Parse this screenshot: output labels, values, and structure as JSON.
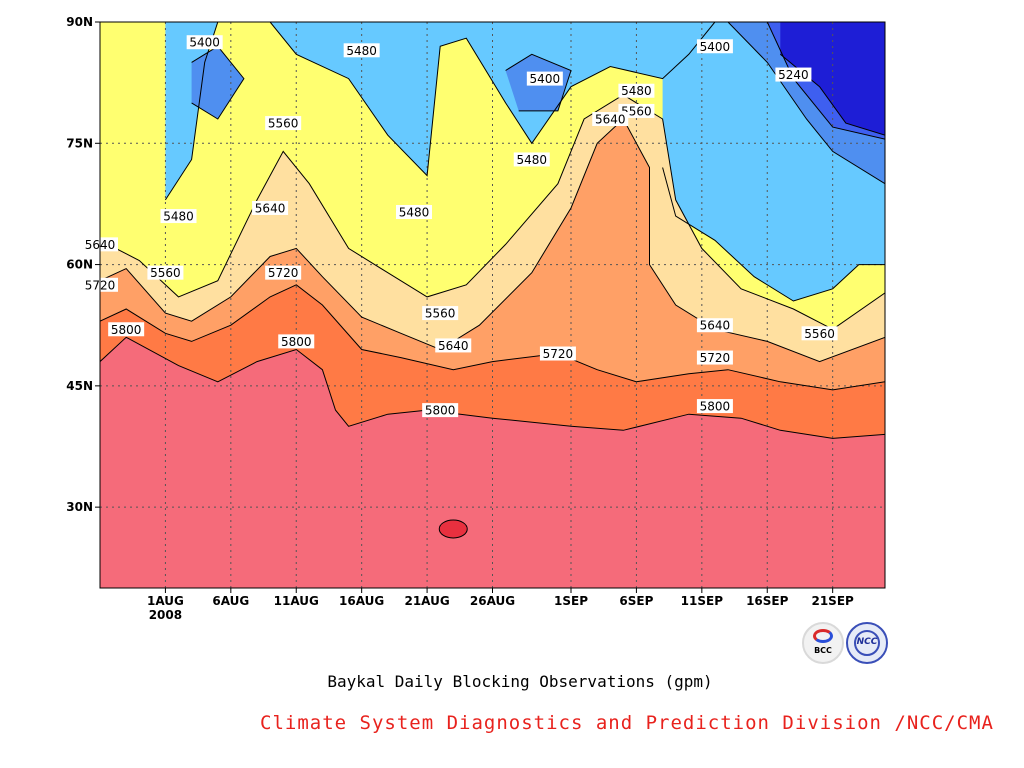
{
  "chart_data": {
    "type": "heatmap",
    "subtype": "filled latitude-time contour plot",
    "x_axis": {
      "start": "2008-07-27",
      "end": "2008-09-25",
      "tick_labels": [
        "1AUG",
        "6AUG",
        "11AUG",
        "16AUG",
        "21AUG",
        "26AUG",
        "1SEP",
        "6SEP",
        "11SEP",
        "16SEP",
        "21SEP"
      ],
      "tick_dates": [
        "2008-08-01",
        "2008-08-06",
        "2008-08-11",
        "2008-08-16",
        "2008-08-21",
        "2008-08-26",
        "2008-09-01",
        "2008-09-06",
        "2008-09-11",
        "2008-09-16",
        "2008-09-21"
      ],
      "year_label": "2008"
    },
    "y_axis": {
      "range": [
        20,
        90
      ],
      "tick_labels": [
        "30N",
        "45N",
        "60N",
        "75N",
        "90N"
      ],
      "tick_values": [
        30,
        45,
        60,
        75,
        90
      ]
    },
    "grid": true,
    "contour_levels": [
      5240,
      5320,
      5400,
      5480,
      5560,
      5640,
      5720,
      5800
    ],
    "contour_lines": [
      {
        "level": 5800,
        "points": [
          [
            "2008-07-27",
            48.0
          ],
          [
            "2008-07-29",
            51.0
          ],
          [
            "2008-08-02",
            47.5
          ],
          [
            "2008-08-05",
            45.5
          ],
          [
            "2008-08-08",
            48.0
          ],
          [
            "2008-08-11",
            49.5
          ],
          [
            "2008-08-13",
            47.0
          ],
          [
            "2008-08-14",
            42.0
          ],
          [
            "2008-08-15",
            40.0
          ],
          [
            "2008-08-18",
            41.5
          ],
          [
            "2008-08-21",
            42.0
          ],
          [
            "2008-08-26",
            41.0
          ],
          [
            "2008-09-01",
            40.0
          ],
          [
            "2008-09-05",
            39.5
          ],
          [
            "2008-09-10",
            41.5
          ],
          [
            "2008-09-14",
            41.0
          ],
          [
            "2008-09-17",
            39.5
          ],
          [
            "2008-09-21",
            38.5
          ],
          [
            "2008-09-25",
            39.0
          ]
        ]
      },
      {
        "level": 5720,
        "points": [
          [
            "2008-07-27",
            53.0
          ],
          [
            "2008-07-29",
            54.5
          ],
          [
            "2008-08-01",
            51.5
          ],
          [
            "2008-08-03",
            50.5
          ],
          [
            "2008-08-06",
            52.5
          ],
          [
            "2008-08-09",
            56.0
          ],
          [
            "2008-08-11",
            57.5
          ],
          [
            "2008-08-13",
            55.0
          ],
          [
            "2008-08-16",
            49.5
          ],
          [
            "2008-08-19",
            48.5
          ],
          [
            "2008-08-23",
            47.0
          ],
          [
            "2008-08-26",
            48.0
          ],
          [
            "2008-08-31",
            49.0
          ],
          [
            "2008-09-03",
            47.0
          ],
          [
            "2008-09-06",
            45.5
          ],
          [
            "2008-09-10",
            46.5
          ],
          [
            "2008-09-13",
            47.0
          ],
          [
            "2008-09-17",
            45.5
          ],
          [
            "2008-09-21",
            44.5
          ],
          [
            "2008-09-25",
            45.5
          ]
        ]
      },
      {
        "level": 5640,
        "points": [
          [
            "2008-07-27",
            58.0
          ],
          [
            "2008-07-29",
            59.5
          ],
          [
            "2008-08-01",
            54.0
          ],
          [
            "2008-08-03",
            53.0
          ],
          [
            "2008-08-06",
            56.0
          ],
          [
            "2008-08-09",
            61.0
          ],
          [
            "2008-08-11",
            62.0
          ],
          [
            "2008-08-13",
            58.5
          ],
          [
            "2008-08-16",
            53.5
          ],
          [
            "2008-08-19",
            51.5
          ],
          [
            "2008-08-22",
            49.5
          ],
          [
            "2008-08-25",
            52.5
          ],
          [
            "2008-08-29",
            59.0
          ],
          [
            "2008-09-01",
            67.0
          ],
          [
            "2008-09-03",
            75.0
          ],
          [
            "2008-09-05",
            78.0
          ],
          [
            "2008-09-07",
            72.0
          ],
          [
            "2008-09-07",
            60.0
          ],
          [
            "2008-09-09",
            55.0
          ],
          [
            "2008-09-12",
            52.0
          ],
          [
            "2008-09-16",
            50.5
          ],
          [
            "2008-09-20",
            48.0
          ],
          [
            "2008-09-25",
            51.0
          ]
        ]
      },
      {
        "level": 5560,
        "points": [
          [
            "2008-07-27",
            63.0
          ],
          [
            "2008-07-30",
            60.5
          ],
          [
            "2008-08-02",
            56.0
          ],
          [
            "2008-08-05",
            58.0
          ],
          [
            "2008-08-08",
            68.0
          ],
          [
            "2008-08-10",
            74.0
          ],
          [
            "2008-08-12",
            70.0
          ],
          [
            "2008-08-15",
            62.0
          ],
          [
            "2008-08-18",
            59.0
          ],
          [
            "2008-08-21",
            56.0
          ],
          [
            "2008-08-24",
            57.5
          ],
          [
            "2008-08-27",
            62.5
          ],
          [
            "2008-08-31",
            70.0
          ],
          [
            "2008-09-02",
            78.0
          ],
          [
            "2008-09-05",
            81.0
          ],
          [
            "2008-09-08",
            78.0
          ],
          [
            "2008-09-09",
            68.0
          ],
          [
            "2008-09-11",
            62.0
          ],
          [
            "2008-09-14",
            57.0
          ],
          [
            "2008-09-18",
            54.5
          ],
          [
            "2008-09-21",
            52.0
          ],
          [
            "2008-09-25",
            56.5
          ]
        ]
      },
      {
        "level": 5480,
        "points": [
          [
            "2008-08-01",
            68.0
          ],
          [
            "2008-08-03",
            73.0
          ],
          [
            "2008-08-04",
            85.0
          ],
          [
            "2008-08-05",
            90.0
          ]
        ]
      },
      {
        "level": 5480,
        "points": [
          [
            "2008-08-09",
            90.0
          ],
          [
            "2008-08-11",
            86.0
          ],
          [
            "2008-08-15",
            83.0
          ],
          [
            "2008-08-18",
            76.0
          ],
          [
            "2008-08-21",
            71.0
          ],
          [
            "2008-08-22",
            87.0
          ],
          [
            "2008-08-24",
            88.0
          ],
          [
            "2008-08-27",
            80.0
          ],
          [
            "2008-08-29",
            75.0
          ],
          [
            "2008-09-01",
            82.0
          ],
          [
            "2008-09-04",
            84.5
          ],
          [
            "2008-09-08",
            83.0
          ],
          [
            "2008-09-10",
            86.0
          ],
          [
            "2008-09-12",
            90.0
          ]
        ]
      },
      {
        "level": 5480,
        "points": [
          [
            "2008-09-08",
            72.0
          ],
          [
            "2008-09-09",
            66.0
          ],
          [
            "2008-09-12",
            63.0
          ],
          [
            "2008-09-15",
            58.5
          ],
          [
            "2008-09-18",
            55.5
          ],
          [
            "2008-09-21",
            57.0
          ],
          [
            "2008-09-23",
            60.0
          ],
          [
            "2008-09-25",
            60.0
          ]
        ]
      },
      {
        "level": 5400,
        "points": [
          [
            "2008-08-03",
            85.0
          ],
          [
            "2008-08-05",
            87.0
          ],
          [
            "2008-08-07",
            83.0
          ],
          [
            "2008-08-05",
            78.0
          ],
          [
            "2008-08-03",
            80.0
          ]
        ]
      },
      {
        "level": 5400,
        "points": [
          [
            "2008-08-27",
            84.0
          ],
          [
            "2008-08-29",
            86.0
          ],
          [
            "2008-09-01",
            84.0
          ],
          [
            "2008-08-31",
            79.0
          ],
          [
            "2008-08-28",
            79.0
          ]
        ]
      },
      {
        "level": 5400,
        "points": [
          [
            "2008-09-13",
            90.0
          ],
          [
            "2008-09-16",
            85.0
          ],
          [
            "2008-09-19",
            78.0
          ],
          [
            "2008-09-21",
            74.0
          ],
          [
            "2008-09-25",
            70.0
          ]
        ]
      },
      {
        "level": 5320,
        "points": [
          [
            "2008-09-16",
            90.0
          ],
          [
            "2008-09-18",
            83.0
          ],
          [
            "2008-09-21",
            77.0
          ],
          [
            "2008-09-25",
            75.5
          ]
        ]
      },
      {
        "level": 5240,
        "points": [
          [
            "2008-09-17",
            86.0
          ],
          [
            "2008-09-20",
            82.0
          ],
          [
            "2008-09-22",
            77.5
          ],
          [
            "2008-09-25",
            76.0
          ]
        ]
      }
    ],
    "contour_labels": [
      {
        "text": "5400",
        "x": "2008-08-04",
        "y": 87.5
      },
      {
        "text": "5480",
        "x": "2008-08-16",
        "y": 86.5
      },
      {
        "text": "5400",
        "x": "2008-08-30",
        "y": 83.0
      },
      {
        "text": "5400",
        "x": "2008-09-12",
        "y": 87.0
      },
      {
        "text": "5240",
        "x": "2008-09-18",
        "y": 83.5
      },
      {
        "text": "5480",
        "x": "2008-09-06",
        "y": 81.5
      },
      {
        "text": "5560",
        "x": "2008-09-06",
        "y": 79.0
      },
      {
        "text": "5640",
        "x": "2008-09-04",
        "y": 78.0
      },
      {
        "text": "5560",
        "x": "2008-08-10",
        "y": 77.5
      },
      {
        "text": "5480",
        "x": "2008-08-29",
        "y": 73.0
      },
      {
        "text": "5480",
        "x": "2008-08-02",
        "y": 66.0
      },
      {
        "text": "5480",
        "x": "2008-08-20",
        "y": 66.5
      },
      {
        "text": "5640",
        "x": "2008-08-09",
        "y": 67.0
      },
      {
        "text": "5640",
        "x": "2008-07-27",
        "y": 62.5
      },
      {
        "text": "5560",
        "x": "2008-08-01",
        "y": 59.0
      },
      {
        "text": "5720",
        "x": "2008-08-10",
        "y": 59.0
      },
      {
        "text": "5720",
        "x": "2008-07-27",
        "y": 57.5
      },
      {
        "text": "5560",
        "x": "2008-08-22",
        "y": 54.0
      },
      {
        "text": "5800",
        "x": "2008-07-29",
        "y": 52.0
      },
      {
        "text": "5800",
        "x": "2008-08-11",
        "y": 50.5
      },
      {
        "text": "5640",
        "x": "2008-08-23",
        "y": 50.0
      },
      {
        "text": "5720",
        "x": "2008-08-31",
        "y": 49.0
      },
      {
        "text": "5640",
        "x": "2008-09-12",
        "y": 52.5
      },
      {
        "text": "5560",
        "x": "2008-09-20",
        "y": 51.5
      },
      {
        "text": "5720",
        "x": "2008-09-12",
        "y": 48.5
      },
      {
        "text": "5800",
        "x": "2008-08-22",
        "y": 42.0
      },
      {
        "text": "5800",
        "x": "2008-09-12",
        "y": 42.5
      }
    ],
    "fill_colors": {
      "below_5240": "#1e1ed6",
      "5240_5320": "#3e5ff0",
      "5320_5400": "#4f8ff0",
      "5400_5480": "#66c9ff",
      "5480_5560": "#ffff70",
      "5560_5640": "#ffe0a0",
      "5640_5720": "#ffa066",
      "5720_5800": "#ff7a45",
      "above_5800": "#f56b7a",
      "local_max": "#e8303f"
    },
    "caption": "Baykal Daily Blocking Observations (gpm)"
  },
  "footer": {
    "credit": "Climate System Diagnostics and Prediction Division /NCC/CMA",
    "logo_left_icon": "bcc-logo-icon",
    "logo_left_text": "BCC",
    "logo_right_icon": "ncc-logo-icon",
    "logo_right_text": "NCC"
  }
}
